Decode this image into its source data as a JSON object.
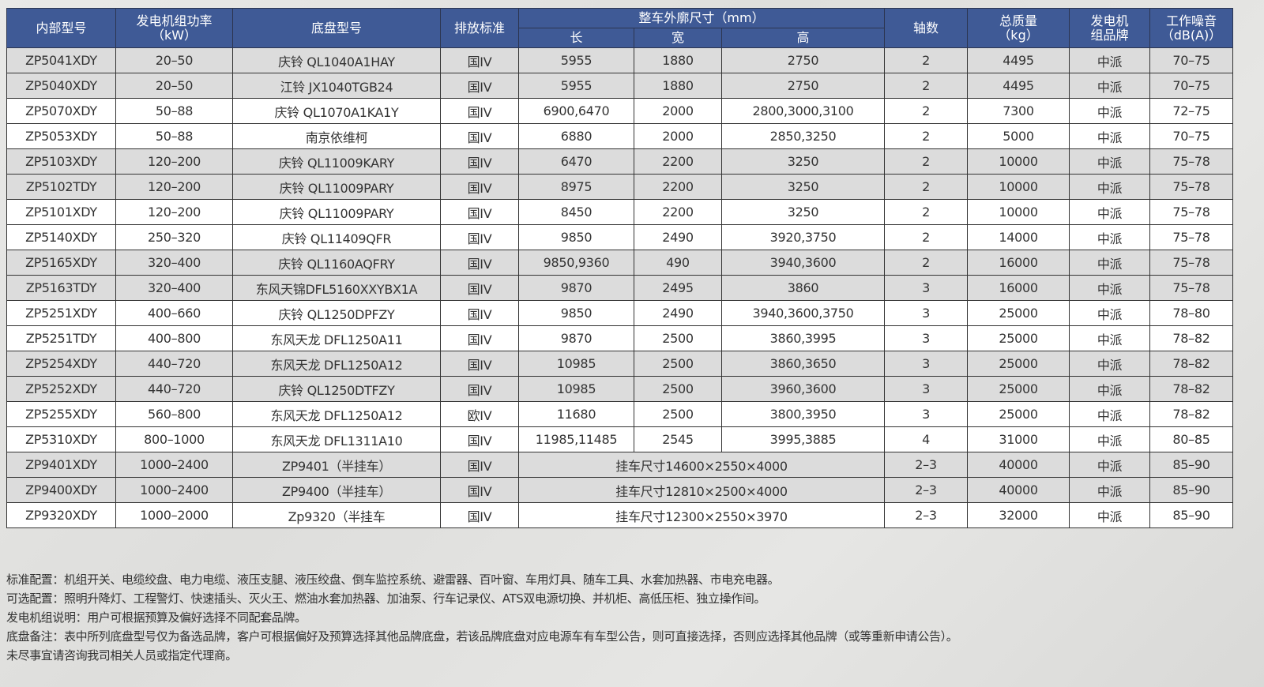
{
  "header": {
    "model": "内部型号",
    "power": "发电机组功率\n（kW）",
    "chassis": "底盘型号",
    "emission": "排放标准",
    "dimensions": "整车外廓尺寸（mm）",
    "length": "长",
    "width": "宽",
    "height": "高",
    "axles": "轴数",
    "mass": "总质量\n（kg）",
    "brand": "发电机\n组品牌",
    "noise": "工作噪音\n（dB(A)）"
  },
  "rows": [
    {
      "model": "ZP5041XDY",
      "power": "20–50",
      "chassis": "庆铃 QL1040A1HAY",
      "emission": "国IV",
      "length": "5955",
      "width": "1880",
      "height": "2750",
      "axles": "2",
      "mass": "4495",
      "brand": "中派",
      "noise": "70–75"
    },
    {
      "model": "ZP5040XDY",
      "power": "20–50",
      "chassis": "江铃 JX1040TGB24",
      "emission": "国IV",
      "length": "5955",
      "width": "1880",
      "height": "2750",
      "axles": "2",
      "mass": "4495",
      "brand": "中派",
      "noise": "70–75"
    },
    {
      "model": "ZP5070XDY",
      "power": "50–88",
      "chassis": "庆铃 QL1070A1KA1Y",
      "emission": "国IV",
      "length": "6900,6470",
      "width": "2000",
      "height": "2800,3000,3100",
      "axles": "2",
      "mass": "7300",
      "brand": "中派",
      "noise": "72–75"
    },
    {
      "model": "ZP5053XDY",
      "power": "50–88",
      "chassis": "南京依维柯",
      "emission": "国IV",
      "length": "6880",
      "width": "2000",
      "height": "2850,3250",
      "axles": "2",
      "mass": "5000",
      "brand": "中派",
      "noise": "70–75"
    },
    {
      "model": "ZP5103XDY",
      "power": "120–200",
      "chassis": "庆铃 QL11009KARY",
      "emission": "国IV",
      "length": "6470",
      "width": "2200",
      "height": "3250",
      "axles": "2",
      "mass": "10000",
      "brand": "中派",
      "noise": "75–78"
    },
    {
      "model": "ZP5102TDY",
      "power": "120–200",
      "chassis": "庆铃 QL11009PARY",
      "emission": "国IV",
      "length": "8975",
      "width": "2200",
      "height": "3250",
      "axles": "2",
      "mass": "10000",
      "brand": "中派",
      "noise": "75–78"
    },
    {
      "model": "ZP5101XDY",
      "power": "120–200",
      "chassis": "庆铃 QL11009PARY",
      "emission": "国IV",
      "length": "8450",
      "width": "2200",
      "height": "3250",
      "axles": "2",
      "mass": "10000",
      "brand": "中派",
      "noise": "75–78"
    },
    {
      "model": "ZP5140XDY",
      "power": "250–320",
      "chassis": "庆铃 QL11409QFR",
      "emission": "国IV",
      "length": "9850",
      "width": "2490",
      "height": "3920,3750",
      "axles": "2",
      "mass": "14000",
      "brand": "中派",
      "noise": "75–78"
    },
    {
      "model": "ZP5165XDY",
      "power": "320–400",
      "chassis": "庆铃 QL1160AQFRY",
      "emission": "国IV",
      "length": "9850,9360",
      "width": "490",
      "height": "3940,3600",
      "axles": "2",
      "mass": "16000",
      "brand": "中派",
      "noise": "75–78"
    },
    {
      "model": "ZP5163TDY",
      "power": "320–400",
      "chassis": "东风天锦DFL5160XXYBX1A",
      "emission": "国IV",
      "length": "9870",
      "width": "2495",
      "height": "3860",
      "axles": "3",
      "mass": "16000",
      "brand": "中派",
      "noise": "75–78"
    },
    {
      "model": "ZP5251XDY",
      "power": "400–660",
      "chassis": "庆铃 QL1250DPFZY",
      "emission": "国IV",
      "length": "9850",
      "width": "2490",
      "height": "3940,3600,3750",
      "axles": "3",
      "mass": "25000",
      "brand": "中派",
      "noise": "78–80"
    },
    {
      "model": "ZP5251TDY",
      "power": "400–800",
      "chassis": "东风天龙 DFL1250A11",
      "emission": "国IV",
      "length": "9870",
      "width": "2500",
      "height": "3860,3995",
      "axles": "3",
      "mass": "25000",
      "brand": "中派",
      "noise": "78–82"
    },
    {
      "model": "ZP5254XDY",
      "power": "440–720",
      "chassis": "东风天龙 DFL1250A12",
      "emission": "国IV",
      "length": "10985",
      "width": "2500",
      "height": "3860,3650",
      "axles": "3",
      "mass": "25000",
      "brand": "中派",
      "noise": "78–82"
    },
    {
      "model": "ZP5252XDY",
      "power": "440–720",
      "chassis": "庆铃 QL1250DTFZY",
      "emission": "国IV",
      "length": "10985",
      "width": "2500",
      "height": "3960,3600",
      "axles": "3",
      "mass": "25000",
      "brand": "中派",
      "noise": "78–82"
    },
    {
      "model": "ZP5255XDY",
      "power": "560–800",
      "chassis": "东风天龙 DFL1250A12",
      "emission": "欧IV",
      "length": "11680",
      "width": "2500",
      "height": "3800,3950",
      "axles": "3",
      "mass": "25000",
      "brand": "中派",
      "noise": "78–82"
    },
    {
      "model": "ZP5310XDY",
      "power": "800–1000",
      "chassis": "东风天龙 DFL1311A10",
      "emission": "国IV",
      "length": "11985,11485",
      "width": "2545",
      "height": "3995,3885",
      "axles": "4",
      "mass": "31000",
      "brand": "中派",
      "noise": "80–85"
    },
    {
      "model": "ZP9401XDY",
      "power": "1000–2400",
      "chassis": "ZP9401（半挂车）",
      "emission": "国IV",
      "trailer": "挂车尺寸14600×2550×4000",
      "axles": "2–3",
      "mass": "40000",
      "brand": "中派",
      "noise": "85–90"
    },
    {
      "model": "ZP9400XDY",
      "power": "1000–2400",
      "chassis": "ZP9400（半挂车）",
      "emission": "国IV",
      "trailer": "挂车尺寸12810×2500×4000",
      "axles": "2–3",
      "mass": "40000",
      "brand": "中派",
      "noise": "85–90"
    },
    {
      "model": "ZP9320XDY",
      "power": "1000–2000",
      "chassis": "Zp9320（半挂车",
      "emission": "国IV",
      "trailer": "挂车尺寸12300×2550×3970",
      "axles": "2–3",
      "mass": "32000",
      "brand": "中派",
      "noise": "85–90"
    }
  ],
  "notes": [
    "标准配置：机组开关、电缆绞盘、电力电缆、液压支腿、液压绞盘、倒车监控系统、避雷器、百叶窗、车用灯具、随车工具、水套加热器、市电充电器。",
    "可选配置：照明升降灯、工程警灯、快速插头、灭火王、燃油水套加热器、加油泵、行车记录仪、ATS双电源切换、并机柜、高低压柜、独立操作间。",
    "发电机组说明：用户可根据预算及偏好选择不同配套品牌。",
    "底盘备注：表中所列底盘型号仅为备选品牌，客户可根据偏好及预算选择其他品牌底盘，若该品牌底盘对应电源车有车型公告，则可直接选择，否则应选择其他品牌（或等重新申请公告）。",
    "未尽事宜请咨询我司相关人员或指定代理商。"
  ],
  "colors": {
    "header_bg": "#3f5a96",
    "row_gray": "#dcdcdc",
    "row_white": "#ffffff"
  }
}
